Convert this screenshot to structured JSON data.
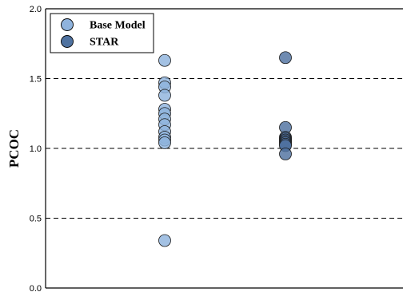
{
  "chart_data": {
    "type": "scatter",
    "ylabel": "PCOC",
    "ylim": [
      0.0,
      2.0
    ],
    "yticks": [
      "0.0",
      "0.5",
      "1.0",
      "1.5",
      "2.0"
    ],
    "grid": "horizontal dashed at 0.5, 1.0, 1.5",
    "legend_position": "top-left",
    "categories": [
      "Base Model",
      "STAR"
    ],
    "series": [
      {
        "name": "Base Model",
        "color": "#8fb3dd",
        "values": [
          1.63,
          1.47,
          1.44,
          1.38,
          1.28,
          1.25,
          1.21,
          1.17,
          1.12,
          1.08,
          1.06,
          1.04,
          0.34
        ]
      },
      {
        "name": "STAR",
        "color": "#4f72a0",
        "values": [
          1.65,
          1.15,
          1.08,
          1.07,
          1.06,
          1.05,
          1.04,
          1.03,
          1.02,
          0.96
        ]
      }
    ]
  }
}
